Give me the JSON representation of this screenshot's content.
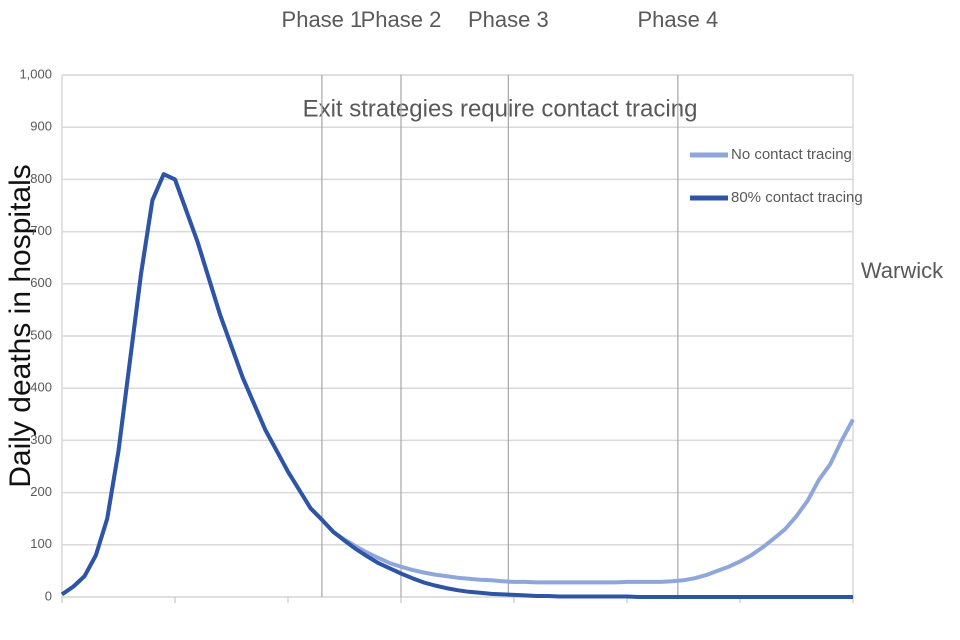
{
  "chart_data": {
    "type": "line",
    "title": "Exit strategies require contact tracing",
    "y_label": "Daily deaths in hospitals",
    "source": "Warwick",
    "x": [
      0,
      2,
      4,
      6,
      8,
      10,
      12,
      14,
      16,
      18,
      20,
      22,
      24,
      26,
      28,
      30,
      32,
      34,
      36,
      38,
      40,
      42,
      44,
      46,
      48,
      50,
      52,
      54,
      56,
      58,
      60,
      62,
      64,
      66,
      68,
      70,
      72,
      74,
      76,
      78,
      80,
      82,
      84,
      86,
      88,
      90,
      92,
      94,
      96,
      98,
      100,
      102,
      104,
      106,
      108,
      110,
      112,
      114,
      116,
      118,
      120,
      122,
      124,
      126,
      128,
      130,
      132,
      134,
      136,
      138,
      140
    ],
    "xlim": [
      0,
      140
    ],
    "ylim": [
      0,
      1000
    ],
    "yticks": [
      {
        "value": 0,
        "label": "0"
      },
      100,
      200,
      300,
      400,
      500,
      600,
      700,
      800,
      900,
      {
        "value": 1000,
        "label": "1,000"
      }
    ],
    "grid": true,
    "legend": "upper right",
    "phases": [
      {
        "label": "Phase 1",
        "x": 46
      },
      {
        "label": "Phase 2",
        "x": 60
      },
      {
        "label": "Phase 3",
        "x": 79
      },
      {
        "label": "Phase 4",
        "x": 109
      }
    ],
    "series": [
      {
        "name": "No contact tracing",
        "color": "#8fa6db",
        "values": [
          5,
          20,
          40,
          80,
          150,
          280,
          450,
          620,
          760,
          810,
          800,
          740,
          680,
          610,
          540,
          480,
          420,
          370,
          320,
          280,
          240,
          205,
          170,
          148,
          125,
          110,
          97,
          85,
          75,
          65,
          58,
          52,
          47,
          43,
          40,
          37,
          35,
          33,
          32,
          30,
          29,
          29,
          28,
          28,
          28,
          28,
          28,
          28,
          28,
          28,
          29,
          29,
          29,
          29,
          30,
          32,
          36,
          42,
          50,
          58,
          68,
          80,
          95,
          112,
          130,
          155,
          185,
          225,
          255,
          300,
          340
        ]
      },
      {
        "name": "80% contact tracing",
        "color": "#2e55a5",
        "values": [
          5,
          20,
          40,
          80,
          150,
          280,
          450,
          620,
          760,
          810,
          800,
          740,
          680,
          610,
          540,
          480,
          420,
          370,
          320,
          280,
          240,
          205,
          170,
          148,
          125,
          108,
          92,
          78,
          65,
          55,
          45,
          36,
          28,
          22,
          17,
          13,
          10,
          8,
          6,
          5,
          4,
          3,
          2,
          2,
          1,
          1,
          1,
          1,
          1,
          1,
          1,
          0,
          0,
          0,
          0,
          0,
          0,
          0,
          0,
          0,
          0,
          0,
          0,
          0,
          0,
          0,
          0,
          0,
          0,
          0,
          0
        ]
      }
    ]
  }
}
